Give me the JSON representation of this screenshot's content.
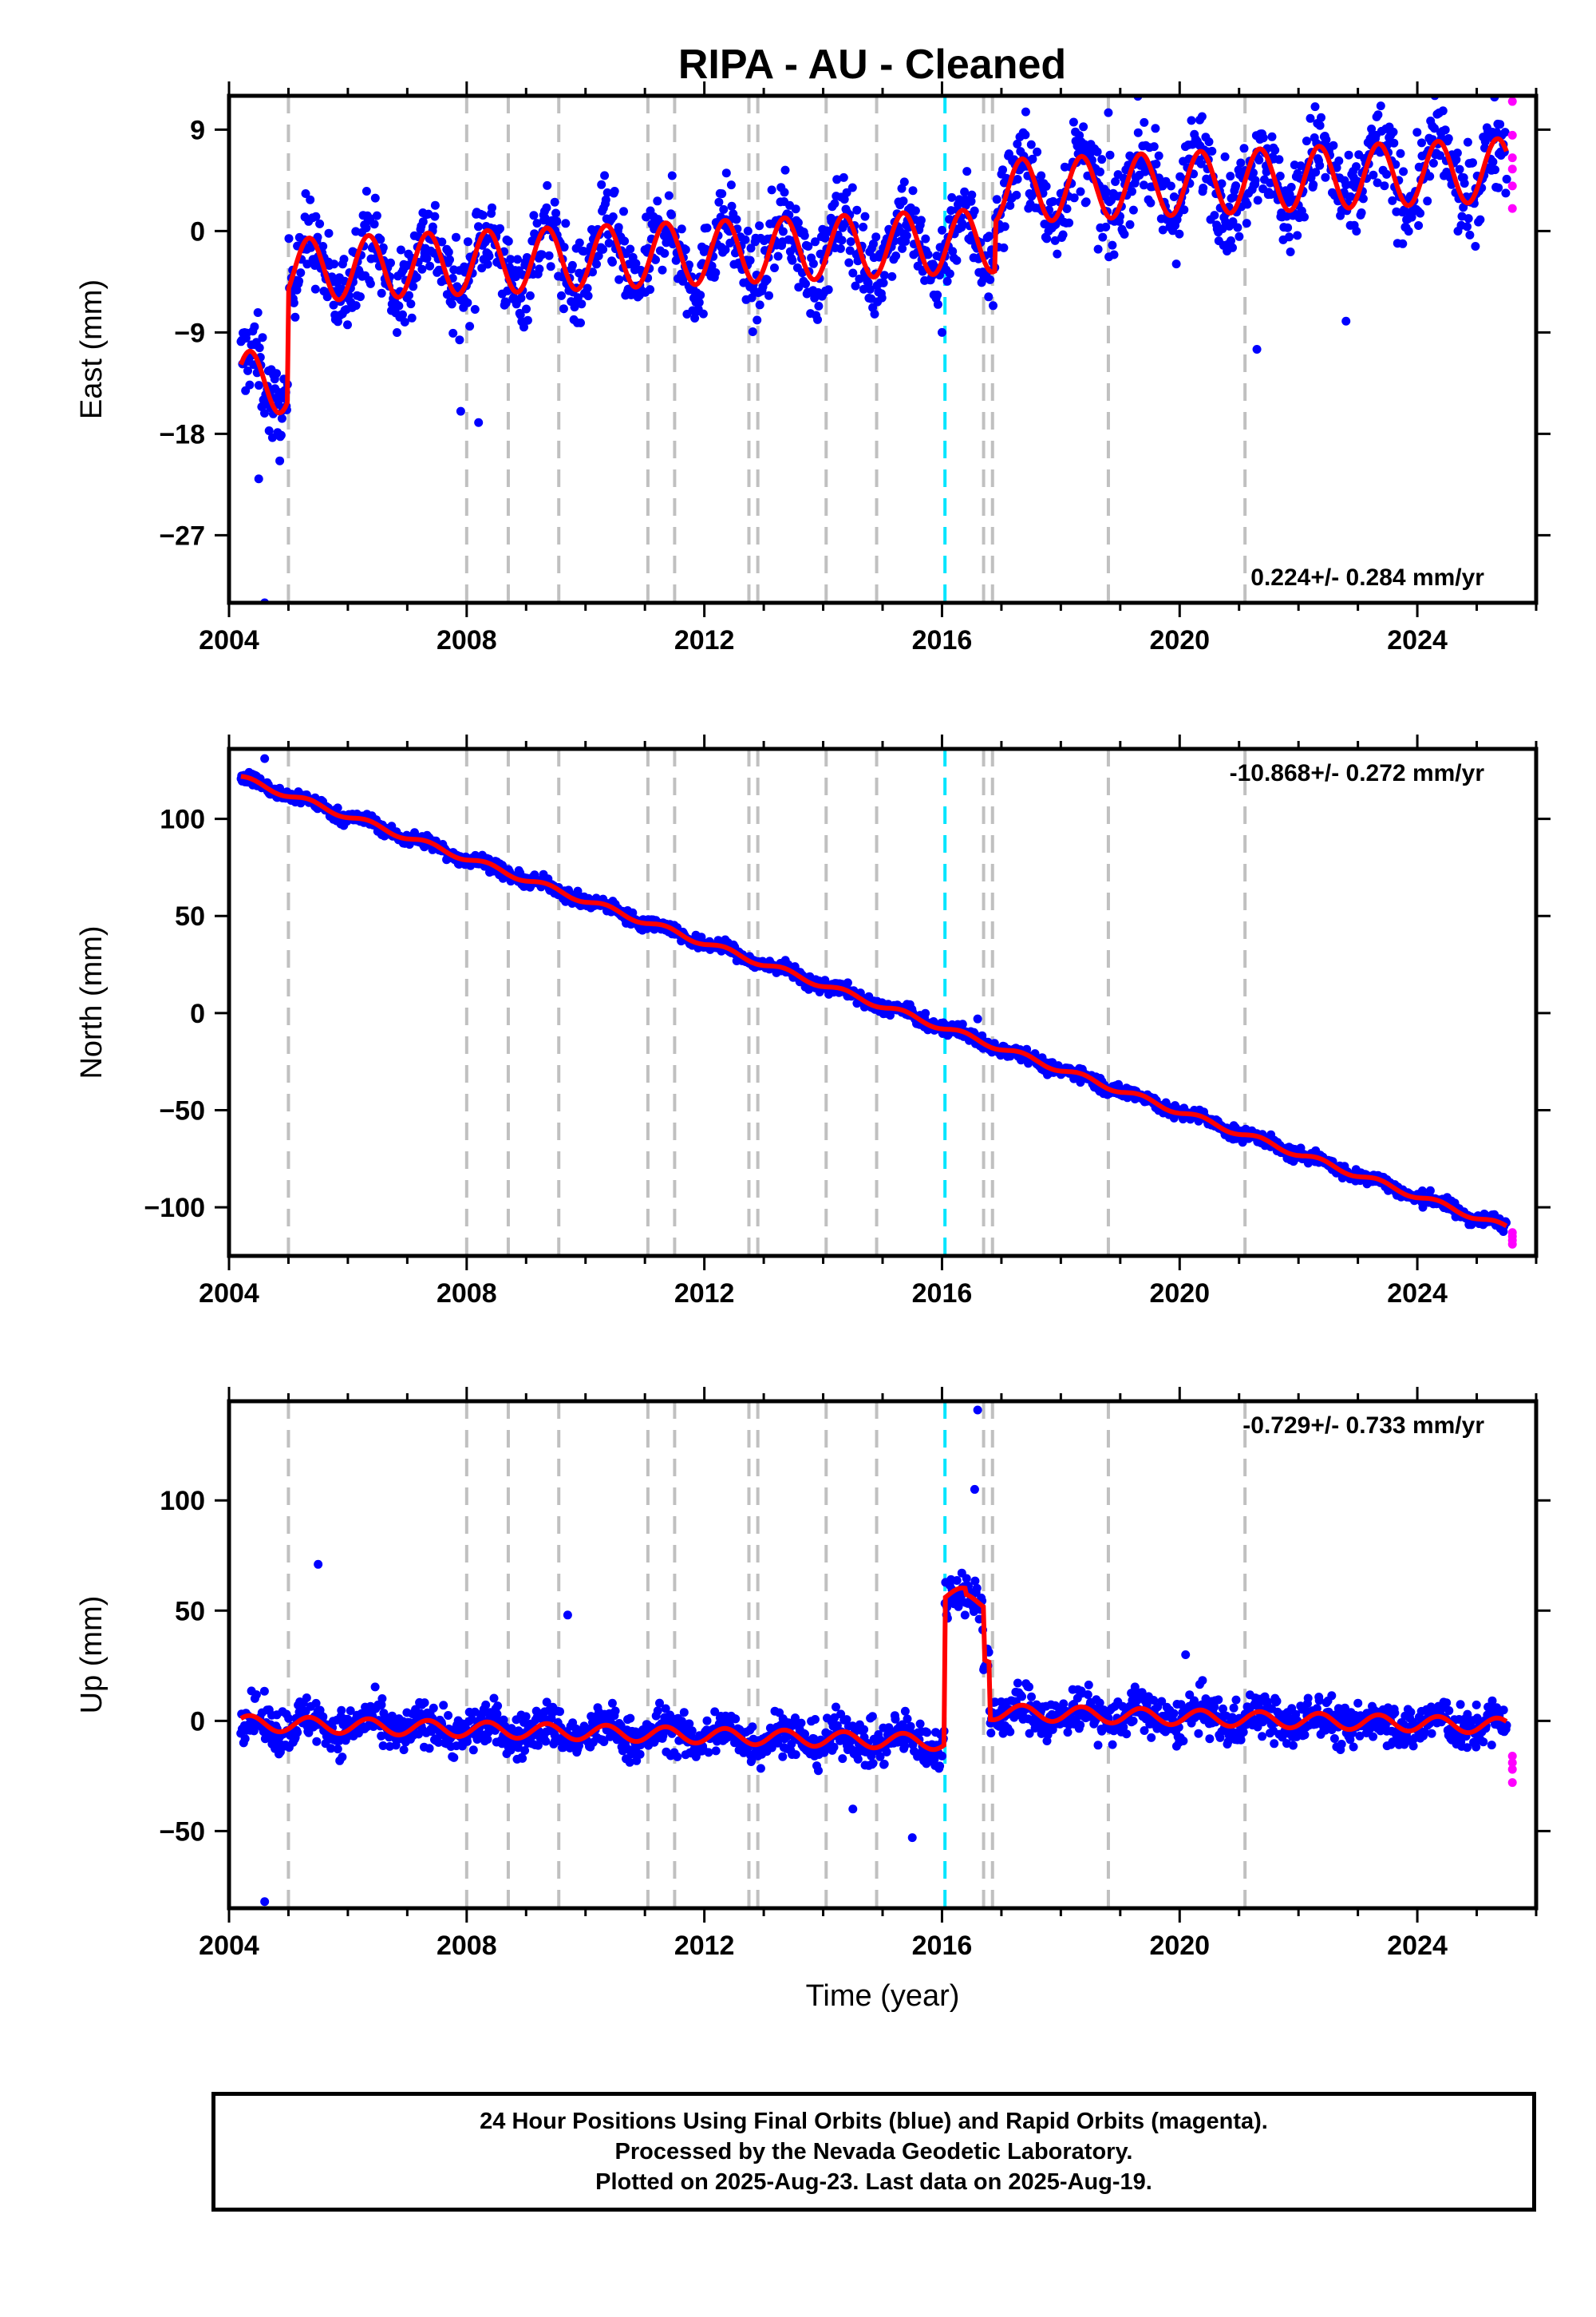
{
  "title": "RIPA  - AU - Cleaned",
  "footer": {
    "line1": "24 Hour Positions Using Final Orbits (blue) and Rapid Orbits (magenta).",
    "line2": "Processed by the Nevada Geodetic Laboratory.",
    "line3": "Plotted on 2025-Aug-23. Last data on 2025-Aug-19."
  },
  "colors": {
    "final_orbits": "#0000ff",
    "rapid_orbits": "#ff00ff",
    "model_fit": "#ff0000",
    "equipment_change": "#c0c0c0",
    "event_marker": "#00e5ff"
  },
  "chart_data": [
    {
      "type": "scatter",
      "ylabel": "East (mm)",
      "xlim": [
        2004.0,
        2026.0
      ],
      "ylim": [
        -33,
        12
      ],
      "yticks": [
        9,
        0,
        -9,
        -18,
        -27
      ],
      "yticklabels": [
        "9",
        "0",
        "−9",
        "−18",
        "−27"
      ],
      "xticks": [
        2004,
        2008,
        2012,
        2016,
        2020,
        2024
      ],
      "rate_label": "0.224+/- 0.284 mm/yr",
      "rate_position": "bottom-right",
      "series": [
        {
          "name": "Final Orbits (blue)",
          "role": "final",
          "x_start": 2004.2,
          "x_end": 2025.5,
          "trend": 0.224,
          "offsets": [
            [
              2004.2,
              -13.5
            ],
            [
              2005.0,
              -3.5
            ],
            [
              2016.9,
              3.5
            ]
          ],
          "annual_amplitude": 2.8,
          "scatter": 1.9,
          "outliers": [
            [
              2004.6,
              -33.0
            ],
            [
              2004.5,
              -22.0
            ],
            [
              2016.0,
              -9.0
            ],
            [
              2018.8,
              10.5
            ],
            [
              2022.8,
              -8.0
            ],
            [
              2021.3,
              -10.5
            ],
            [
              2007.9,
              -16.0
            ],
            [
              2008.2,
              -17.0
            ]
          ]
        },
        {
          "name": "Rapid Orbits (magenta)",
          "role": "rapid",
          "points": [
            [
              2025.6,
              2.0
            ],
            [
              2025.6,
              4.0
            ],
            [
              2025.6,
              5.5
            ],
            [
              2025.6,
              6.5
            ],
            [
              2025.6,
              8.5
            ],
            [
              2025.6,
              11.5
            ]
          ]
        }
      ]
    },
    {
      "type": "scatter",
      "ylabel": "North (mm)",
      "xlim": [
        2004.0,
        2026.0
      ],
      "ylim": [
        -125,
        136
      ],
      "yticks": [
        100,
        50,
        0,
        -50,
        -100
      ],
      "yticklabels": [
        "100",
        "50",
        "0",
        "−50",
        "−100"
      ],
      "xticks": [
        2004,
        2008,
        2012,
        2016,
        2020,
        2024
      ],
      "rate_label": "-10.868+/- 0.272 mm/yr",
      "rate_position": "top-right",
      "series": [
        {
          "name": "Final Orbits (blue)",
          "role": "final",
          "x_start": 2004.2,
          "x_end": 2025.5,
          "trend": -10.868,
          "offsets": [
            [
              2004.2,
              121.0
            ]
          ],
          "annual_amplitude": 1.5,
          "scatter": 1.7,
          "outliers": [
            [
              2004.6,
              131.0
            ],
            [
              2016.6,
              -3.0
            ]
          ]
        },
        {
          "name": "Rapid Orbits (magenta)",
          "role": "rapid",
          "points": [
            [
              2025.6,
              -113.0
            ],
            [
              2025.6,
              -115.0
            ],
            [
              2025.6,
              -117.0
            ],
            [
              2025.6,
              -119.0
            ]
          ]
        }
      ]
    },
    {
      "type": "scatter",
      "ylabel": "Up (mm)",
      "xlim": [
        2004.0,
        2026.0
      ],
      "ylim": [
        -85,
        145
      ],
      "yticks": [
        100,
        50,
        0,
        -50
      ],
      "yticklabels": [
        "100",
        "50",
        "0",
        "−50"
      ],
      "xticks": [
        2004,
        2008,
        2012,
        2016,
        2020,
        2024
      ],
      "xlabel": "Time (year)",
      "rate_label": "-0.729+/- 0.733 mm/yr",
      "rate_position": "top-right",
      "series": [
        {
          "name": "Final Orbits (blue)",
          "role": "final",
          "x_start": 2004.2,
          "x_end": 2025.5,
          "trend": -0.729,
          "offsets": [
            [
              2004.2,
              -1.0
            ],
            [
              2016.05,
              57.0
            ],
            [
              2016.4,
              54.0
            ],
            [
              2016.7,
              30.0
            ],
            [
              2016.8,
              4.0
            ]
          ],
          "annual_amplitude": 3.5,
          "scatter": 5.0,
          "outliers": [
            [
              2005.5,
              71.0
            ],
            [
              2009.7,
              48.0
            ],
            [
              2004.6,
              -82.0
            ],
            [
              2015.5,
              -53.0
            ],
            [
              2016.6,
              141.0
            ],
            [
              2016.55,
              105.0
            ],
            [
              2014.5,
              -40.0
            ],
            [
              2020.1,
              30.0
            ]
          ]
        },
        {
          "name": "Rapid Orbits (magenta)",
          "role": "rapid",
          "points": [
            [
              2025.6,
              -16.0
            ],
            [
              2025.6,
              -19.0
            ],
            [
              2025.6,
              -22.0
            ],
            [
              2025.6,
              -28.0
            ]
          ]
        }
      ]
    }
  ],
  "vertical_markers": {
    "equipment_changes": [
      2005.0,
      2008.0,
      2008.7,
      2009.55,
      2011.05,
      2011.5,
      2012.75,
      2012.9,
      2014.05,
      2014.9,
      2016.7,
      2016.85,
      2018.8,
      2021.1
    ],
    "events": [
      2016.05
    ]
  }
}
